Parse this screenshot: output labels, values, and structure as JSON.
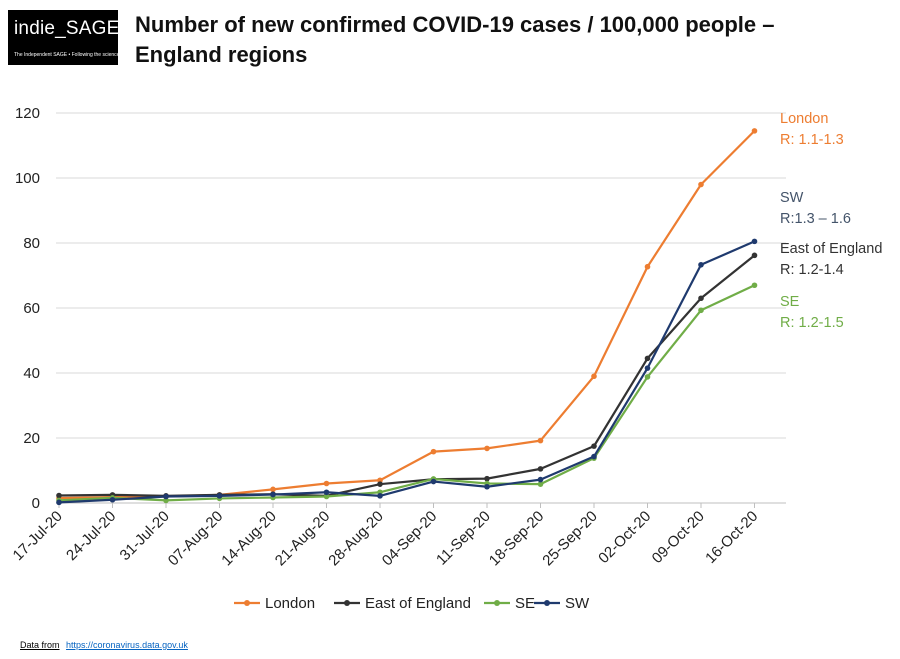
{
  "logo": {
    "name": "indie_SAGE",
    "tagline": "The Independent SAGE • Following the science"
  },
  "title": "Number of new confirmed COVID-19 cases / 100,000 people – England regions",
  "source": {
    "label": "Data from",
    "url": "https://coronavirus.data.gov.uk"
  },
  "chart_data": {
    "type": "line",
    "title": "Number of new confirmed COVID-19 cases / 100,000 people – England regions",
    "xlabel": "",
    "ylabel": "",
    "ylim": [
      0,
      120
    ],
    "yticks": [
      0,
      20,
      40,
      60,
      80,
      100,
      120
    ],
    "grid": true,
    "legend": "bottom",
    "categories": [
      "17-Jul-20",
      "24-Jul-20",
      "31-Jul-20",
      "07-Aug-20",
      "14-Aug-20",
      "21-Aug-20",
      "28-Aug-20",
      "04-Sep-20",
      "11-Sep-20",
      "18-Sep-20",
      "25-Sep-20",
      "02-Oct-20",
      "09-Oct-20",
      "16-Oct-20"
    ],
    "series": [
      {
        "name": "London",
        "color": "#ed7d31",
        "values": [
          1.5,
          1.8,
          2.0,
          2.5,
          4.2,
          6.0,
          7.0,
          15.8,
          16.8,
          19.2,
          39.0,
          72.7,
          98.0,
          114.5
        ]
      },
      {
        "name": "East of England",
        "color": "#333333",
        "values": [
          2.3,
          2.5,
          2.2,
          2.5,
          2.7,
          2.2,
          5.8,
          7.3,
          7.5,
          10.5,
          17.5,
          44.5,
          63.0,
          76.2
        ]
      },
      {
        "name": "SE",
        "color": "#70ad47",
        "values": [
          0.8,
          1.6,
          0.8,
          1.4,
          1.7,
          2.0,
          3.3,
          7.4,
          6.0,
          5.8,
          13.8,
          38.8,
          59.3,
          67.0
        ]
      },
      {
        "name": "SW",
        "color": "#1f3a6e",
        "values": [
          0.2,
          1.0,
          2.0,
          2.2,
          2.6,
          3.3,
          2.2,
          6.6,
          5.0,
          7.2,
          14.3,
          41.5,
          73.3,
          80.5
        ]
      }
    ],
    "annotations": [
      {
        "series": "London",
        "name": "London",
        "r": "R: 1.1-1.3",
        "color": "#ed7d31"
      },
      {
        "series": "SW",
        "name": "SW",
        "r": "R:1.3 – 1.6",
        "color": "#44546a"
      },
      {
        "series": "East of England",
        "name": "East of England",
        "r": "R: 1.2-1.4",
        "color": "#333333"
      },
      {
        "series": "SE",
        "name": "SE",
        "r": "R: 1.2-1.5",
        "color": "#70ad47"
      }
    ]
  }
}
